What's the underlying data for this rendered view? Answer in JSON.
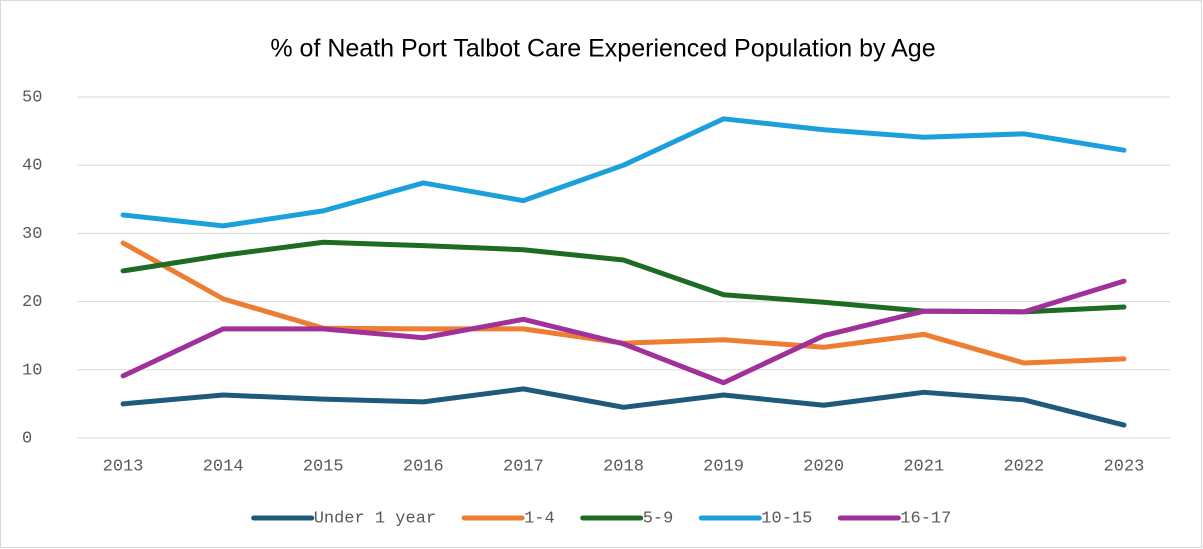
{
  "chart_data": {
    "type": "line",
    "title": "% of Neath Port Talbot Care Experienced Population by Age",
    "categories": [
      "2013",
      "2014",
      "2015",
      "2016",
      "2017",
      "2018",
      "2019",
      "2020",
      "2021",
      "2022",
      "2023"
    ],
    "series": [
      {
        "name": "Under 1 year",
        "color": "#1d5a7b",
        "values": [
          5.0,
          6.3,
          5.7,
          5.3,
          7.2,
          4.5,
          6.3,
          4.8,
          6.7,
          5.6,
          1.9
        ]
      },
      {
        "name": "1-4",
        "color": "#ed7d31",
        "values": [
          28.6,
          20.4,
          16.1,
          16.0,
          16.0,
          13.9,
          14.4,
          13.3,
          15.2,
          11.0,
          11.6
        ]
      },
      {
        "name": "5-9",
        "color": "#1e6b24",
        "values": [
          24.5,
          26.8,
          28.7,
          28.2,
          27.6,
          26.1,
          21.0,
          19.9,
          18.6,
          18.5,
          19.2
        ]
      },
      {
        "name": "10-15",
        "color": "#1ca0dc",
        "values": [
          32.7,
          31.1,
          33.3,
          37.4,
          34.8,
          40.0,
          46.8,
          45.2,
          44.1,
          44.6,
          42.2
        ]
      },
      {
        "name": "16-17",
        "color": "#a0309a",
        "values": [
          9.1,
          16.0,
          16.0,
          14.7,
          17.4,
          13.8,
          8.1,
          15.0,
          18.6,
          18.5,
          23.0
        ]
      }
    ],
    "ylim": [
      0,
      50
    ],
    "yticks": [
      0,
      10,
      20,
      30,
      40,
      50
    ],
    "grid": true,
    "legend": "bottom"
  }
}
